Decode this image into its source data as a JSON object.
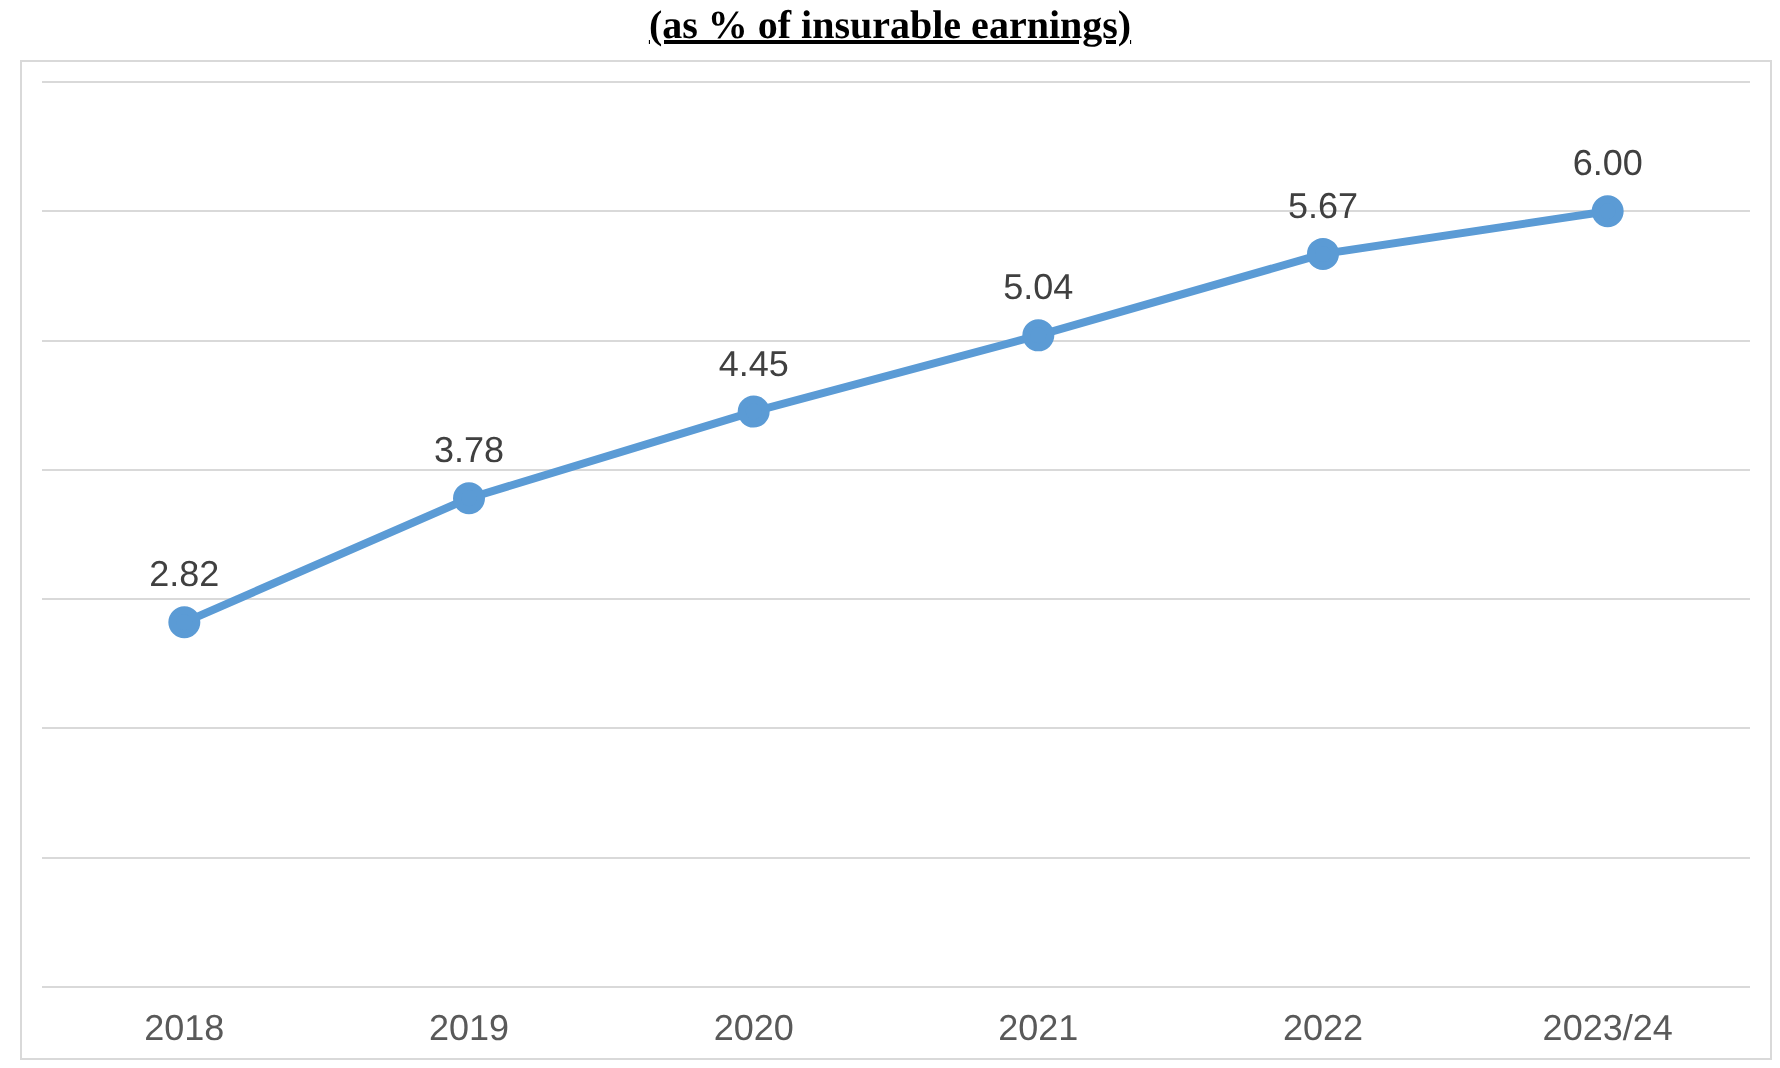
{
  "chart_data": {
    "type": "line",
    "title": "(as % of insurable earnings)",
    "categories": [
      "2018",
      "2019",
      "2020",
      "2021",
      "2022",
      "2023/24"
    ],
    "series": [
      {
        "color": "#5b9bd5",
        "values": [
          2.82,
          3.78,
          4.45,
          5.04,
          5.67,
          6.0
        ],
        "value_labels": [
          "2.82",
          "3.78",
          "4.45",
          "5.04",
          "5.67",
          "6.00"
        ]
      }
    ],
    "ylim": [
      0,
      7
    ],
    "yticks": [
      {
        "value": 0,
        "label": null
      },
      {
        "value": 1,
        "label": null
      },
      {
        "value": 2,
        "label": null
      },
      {
        "value": 3,
        "label": null
      },
      {
        "value": 4,
        "label": null
      },
      {
        "value": 5,
        "label": null
      },
      {
        "value": 6,
        "label": null
      },
      {
        "value": 7,
        "label": null
      }
    ],
    "tick_labels": "x",
    "grid": "y",
    "legend": false,
    "marker": "circle",
    "line_style": "solid"
  }
}
